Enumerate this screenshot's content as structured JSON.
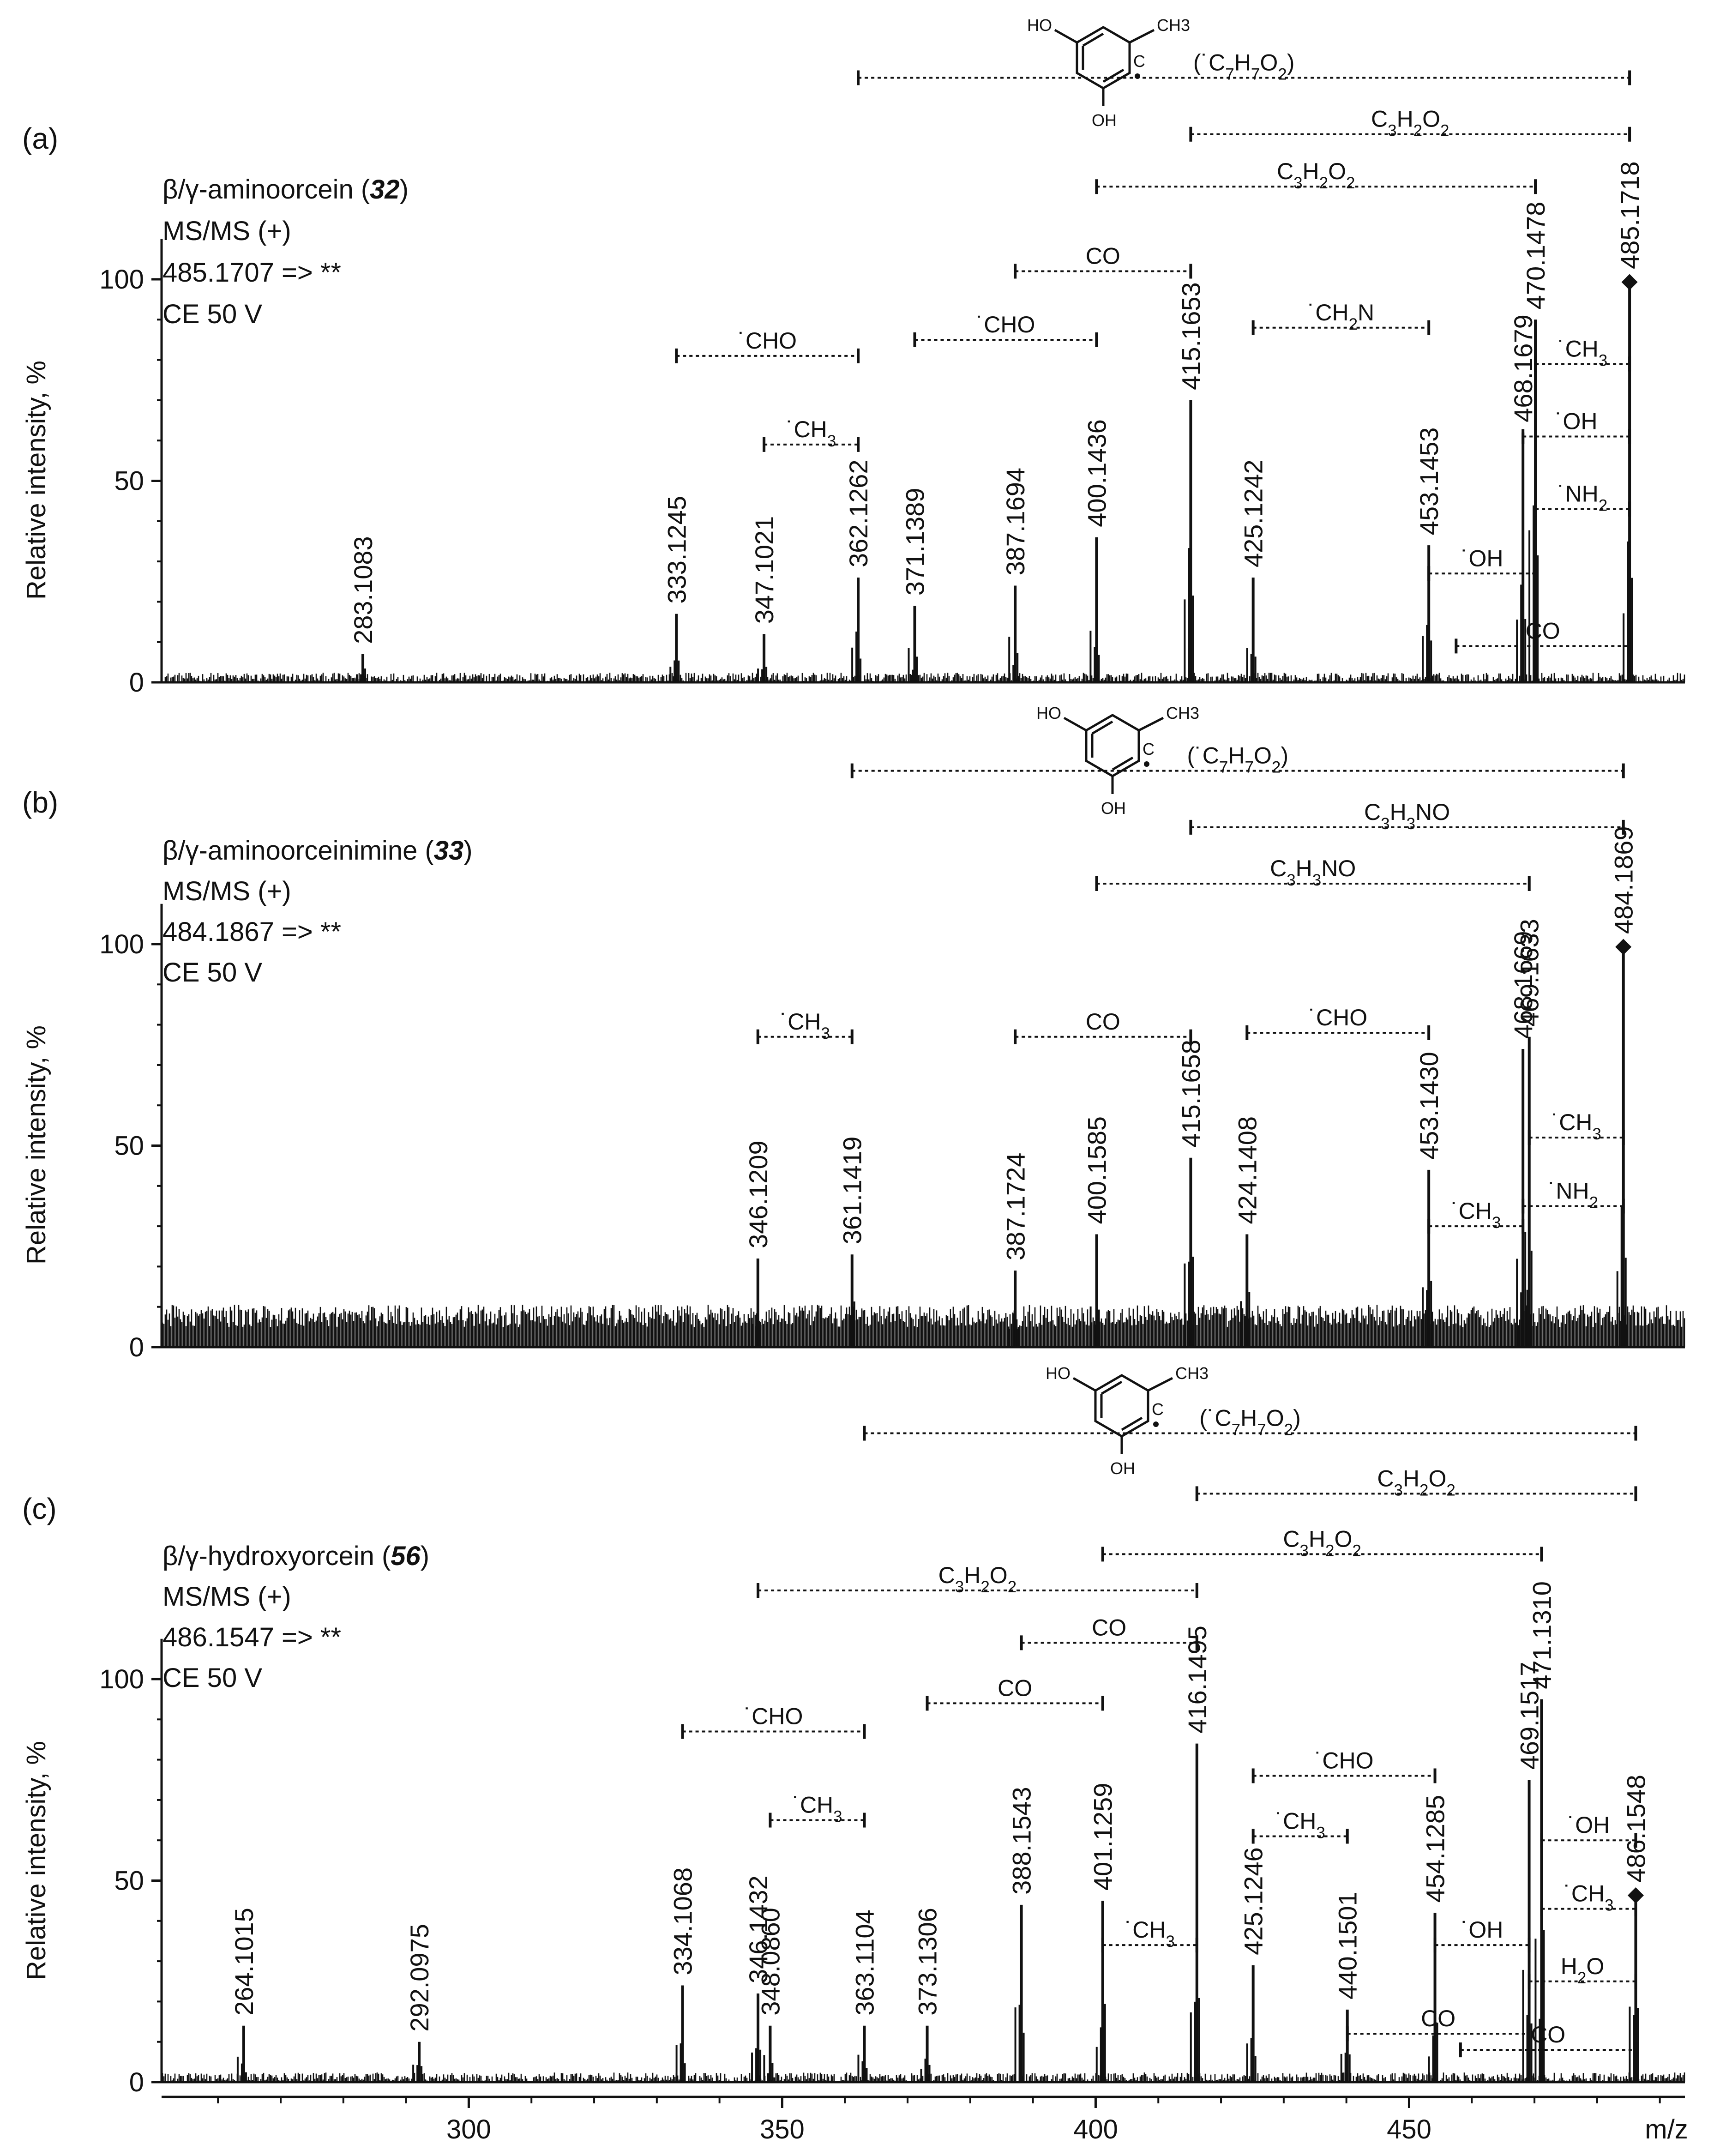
{
  "panels": [
    {
      "letter": "(a)",
      "compound": "β/γ-aminoorcein (",
      "number": "32",
      "compound_close": ")",
      "mode": "MS/MS (+)",
      "precursor": "485.1707 => **",
      "ce": "CE 50 V"
    },
    {
      "letter": "(b)",
      "compound": "β/γ-aminoorceinimine (",
      "number": "33",
      "compound_close": ")",
      "mode": "MS/MS (+)",
      "precursor": "484.1867 => **",
      "ce": "CE 50 V"
    },
    {
      "letter": "(c)",
      "compound": "β/γ-hydroxyorcein (",
      "number": "56",
      "compound_close": ")",
      "mode": "MS/MS (+)",
      "precursor": "486.1547 => **",
      "ce": "CE 50 V"
    }
  ],
  "structure": {
    "ho": "HO",
    "oh": "OH",
    "ch3": "CH3",
    "c_radical": "C",
    "fragment": "(˙C7H7O2)"
  },
  "chart_data": [
    {
      "type": "bar",
      "panel": "(a)",
      "ylabel": "Relative intensity, %",
      "xlabel": "m/z",
      "xlim": [
        251,
        494
      ],
      "ylim": [
        0,
        110
      ],
      "yticks": [
        0,
        50,
        100
      ],
      "xticks": [
        300,
        350,
        400,
        450
      ],
      "precursor_mz": 485.1718,
      "peaks": [
        {
          "mz": 283.1083,
          "i": 7,
          "label": "283.1083"
        },
        {
          "mz": 333.1245,
          "i": 17,
          "label": "333.1245"
        },
        {
          "mz": 347.1021,
          "i": 12,
          "label": "347.1021"
        },
        {
          "mz": 362.1262,
          "i": 26,
          "label": "362.1262"
        },
        {
          "mz": 371.1389,
          "i": 19,
          "label": "371.1389"
        },
        {
          "mz": 387.1694,
          "i": 24,
          "label": "387.1694"
        },
        {
          "mz": 400.1436,
          "i": 36,
          "label": "400.1436"
        },
        {
          "mz": 415.1653,
          "i": 70,
          "label": "415.1653"
        },
        {
          "mz": 425.1242,
          "i": 26,
          "label": "425.1242"
        },
        {
          "mz": 453.1453,
          "i": 34,
          "label": "453.1453"
        },
        {
          "mz": 468.1679,
          "i": 62,
          "label": "468.1679"
        },
        {
          "mz": 470.1478,
          "i": 90,
          "label": "470.1478"
        },
        {
          "mz": 485.1718,
          "i": 100,
          "label": "485.1718",
          "marker": "◆"
        }
      ],
      "annotations": [
        {
          "label": "(˙C7H7O2)",
          "from": 362.1262,
          "to": 485.1718,
          "level": 150
        },
        {
          "label": "C3H2O2",
          "from": 415.1653,
          "to": 485.1718,
          "level": 136
        },
        {
          "label": "C3H2O2",
          "from": 400.1436,
          "to": 470.1478,
          "level": 123
        },
        {
          "label": "CO",
          "from": 387.1694,
          "to": 415.1653,
          "level": 102
        },
        {
          "label": "˙CHO",
          "from": 333.1245,
          "to": 362.1262,
          "level": 81
        },
        {
          "label": "˙CHO",
          "from": 371.1389,
          "to": 400.1436,
          "level": 85
        },
        {
          "label": "˙CH2N",
          "from": 425.1242,
          "to": 453.1453,
          "level": 88
        },
        {
          "label": "˙CH3",
          "from": 347.1021,
          "to": 362.1262,
          "level": 59
        },
        {
          "label": "˙CH3",
          "from": 470.1478,
          "to": 485.1718,
          "level": 79
        },
        {
          "label": "˙OH",
          "from": 468.1679,
          "to": 485.1718,
          "level": 61
        },
        {
          "label": "˙NH2",
          "from": 470.1478,
          "to": 485.1718,
          "level": 43
        },
        {
          "label": "˙OH",
          "from": 453.1453,
          "to": 470.1478,
          "level": 27
        },
        {
          "label": "CO",
          "from": 457.5,
          "to": 485.1718,
          "level": 9
        }
      ]
    },
    {
      "type": "bar",
      "panel": "(b)",
      "ylabel": "Relative intensity, %",
      "xlabel": "m/z",
      "xlim": [
        251,
        494
      ],
      "ylim": [
        0,
        110
      ],
      "yticks": [
        0,
        50,
        100
      ],
      "xticks": [
        300,
        350,
        400,
        450
      ],
      "precursor_mz": 484.1869,
      "peaks": [
        {
          "mz": 346.1209,
          "i": 22,
          "label": "346.1209"
        },
        {
          "mz": 361.1419,
          "i": 23,
          "label": "361.1419"
        },
        {
          "mz": 387.1724,
          "i": 19,
          "label": "387.1724"
        },
        {
          "mz": 400.1585,
          "i": 28,
          "label": "400.1585"
        },
        {
          "mz": 415.1658,
          "i": 47,
          "label": "415.1658"
        },
        {
          "mz": 424.1408,
          "i": 28,
          "label": "424.1408"
        },
        {
          "mz": 453.143,
          "i": 44,
          "label": "453.1430"
        },
        {
          "mz": 468.1669,
          "i": 74,
          "label": "468.1669"
        },
        {
          "mz": 469.1633,
          "i": 77,
          "label": "469.1633"
        },
        {
          "mz": 484.1869,
          "i": 100,
          "label": "484.1869",
          "marker": "◆"
        }
      ],
      "annotations": [
        {
          "label": "(˙C7H7O2)",
          "from": 361.1419,
          "to": 484.1869,
          "level": 143
        },
        {
          "label": "C3H3NO",
          "from": 415.1658,
          "to": 484.1869,
          "level": 129
        },
        {
          "label": "C3H3NO",
          "from": 400.1585,
          "to": 469.1633,
          "level": 115
        },
        {
          "label": "˙CH3",
          "from": 346.1209,
          "to": 361.1419,
          "level": 77
        },
        {
          "label": "CO",
          "from": 387.1724,
          "to": 415.1658,
          "level": 77
        },
        {
          "label": "˙CHO",
          "from": 424.1408,
          "to": 453.143,
          "level": 78
        },
        {
          "label": "˙CH3",
          "from": 469.1633,
          "to": 484.1869,
          "level": 52
        },
        {
          "label": "˙NH2",
          "from": 468.1669,
          "to": 484.1869,
          "level": 35
        },
        {
          "label": "˙CH3",
          "from": 453.143,
          "to": 468.1669,
          "level": 30
        }
      ]
    },
    {
      "type": "bar",
      "panel": "(c)",
      "ylabel": "Relative intensity, %",
      "xlabel": "m/z",
      "xlim": [
        251,
        494
      ],
      "ylim": [
        0,
        110
      ],
      "yticks": [
        0,
        50,
        100
      ],
      "xticks": [
        300,
        350,
        400,
        450
      ],
      "precursor_mz": 486.1548,
      "peaks": [
        {
          "mz": 264.1015,
          "i": 14,
          "label": "264.1015"
        },
        {
          "mz": 292.0975,
          "i": 10,
          "label": "292.0975"
        },
        {
          "mz": 334.1068,
          "i": 24,
          "label": "334.1068"
        },
        {
          "mz": 346.1432,
          "i": 22,
          "label": "346.1432"
        },
        {
          "mz": 348.086,
          "i": 14,
          "label": "348.0860"
        },
        {
          "mz": 363.1104,
          "i": 14,
          "label": "363.1104"
        },
        {
          "mz": 373.1306,
          "i": 14,
          "label": "373.1306"
        },
        {
          "mz": 388.1543,
          "i": 44,
          "label": "388.1543"
        },
        {
          "mz": 401.1259,
          "i": 45,
          "label": "401.1259"
        },
        {
          "mz": 416.1495,
          "i": 84,
          "label": "416.1495"
        },
        {
          "mz": 425.1246,
          "i": 29,
          "label": "425.1246"
        },
        {
          "mz": 440.1501,
          "i": 18,
          "label": "440.1501"
        },
        {
          "mz": 454.1285,
          "i": 42,
          "label": "454.1285"
        },
        {
          "mz": 469.1517,
          "i": 75,
          "label": "469.1517"
        },
        {
          "mz": 471.131,
          "i": 95,
          "label": "471.1310"
        },
        {
          "mz": 486.1548,
          "i": 47,
          "label": "486.1548",
          "marker": "◆"
        }
      ],
      "annotations": [
        {
          "label": "(˙C7H7O2)",
          "from": 363.1104,
          "to": 486.1548,
          "level": 161
        },
        {
          "label": "C3H2O2",
          "from": 416.1495,
          "to": 486.1548,
          "level": 146
        },
        {
          "label": "C3H2O2",
          "from": 401.1259,
          "to": 471.131,
          "level": 131
        },
        {
          "label": "C3H2O2",
          "from": 346.1432,
          "to": 416.1495,
          "level": 122
        },
        {
          "label": "CO",
          "from": 388.1543,
          "to": 416.1495,
          "level": 109
        },
        {
          "label": "CO",
          "from": 373.1306,
          "to": 401.1259,
          "level": 94
        },
        {
          "label": "˙CHO",
          "from": 334.1068,
          "to": 363.1104,
          "level": 87
        },
        {
          "label": "˙CHO",
          "from": 425.1246,
          "to": 454.1285,
          "level": 76
        },
        {
          "label": "˙CH3",
          "from": 348.086,
          "to": 363.1104,
          "level": 65
        },
        {
          "label": "˙CH3",
          "from": 425.1246,
          "to": 440.1501,
          "level": 61
        },
        {
          "label": "˙OH",
          "from": 471.131,
          "to": 486.1548,
          "level": 60
        },
        {
          "label": "˙CH3",
          "from": 471.131,
          "to": 486.1548,
          "level": 43
        },
        {
          "label": "˙CH3",
          "from": 401.1259,
          "to": 416.1495,
          "level": 34
        },
        {
          "label": "˙OH",
          "from": 454.1285,
          "to": 469.1517,
          "level": 34
        },
        {
          "label": "H2O",
          "from": 469.1517,
          "to": 486.1548,
          "level": 25
        },
        {
          "label": "CO",
          "from": 440.1501,
          "to": 469.1517,
          "level": 12
        },
        {
          "label": "CO",
          "from": 458.2,
          "to": 486.1548,
          "level": 8
        }
      ]
    }
  ]
}
